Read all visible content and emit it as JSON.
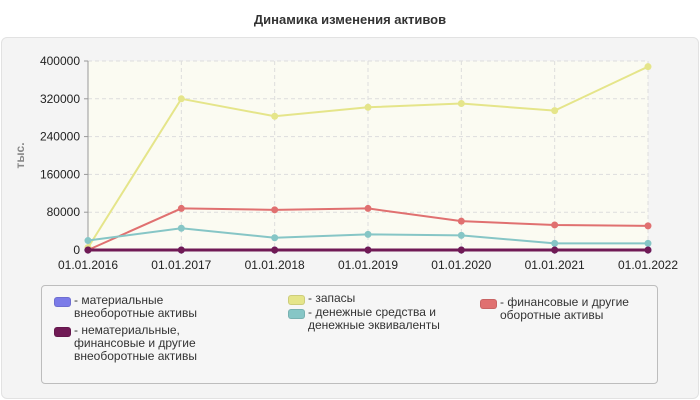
{
  "title": "Динамика изменения активов",
  "chart_data": {
    "type": "line",
    "title": "Динамика изменения активов",
    "ylabel": "тыс.",
    "xlabel": "",
    "categories": [
      "01.01.2016",
      "01.01.2017",
      "01.01.2018",
      "01.01.2019",
      "01.01.2020",
      "01.01.2021",
      "01.01.2022"
    ],
    "ylim": [
      0,
      400000
    ],
    "yticks": [
      "0",
      "80000",
      "160000",
      "240000",
      "320000",
      "400000"
    ],
    "grid": true,
    "legend_placement": "bottom",
    "series": [
      {
        "name": "- материальные внеоборотные активы",
        "color": "#7b7be8",
        "values": [
          0,
          0,
          0,
          0,
          0,
          0,
          0
        ]
      },
      {
        "name": "- нематериальные, финансовые и другие внеоборотные активы",
        "color": "#701a55",
        "values": [
          0,
          0,
          0,
          0,
          0,
          0,
          0
        ]
      },
      {
        "name": "- запасы",
        "color": "#e5e58a",
        "values": [
          5000,
          320000,
          283000,
          302000,
          310000,
          295000,
          388000
        ]
      },
      {
        "name": "- денежные средства и денежные эквиваленты",
        "color": "#86c6c6",
        "values": [
          20000,
          46000,
          26000,
          33000,
          31000,
          14000,
          14000
        ]
      },
      {
        "name": "- финансовые и другие оборотные активы",
        "color": "#e07070",
        "values": [
          0,
          88000,
          85000,
          88000,
          61000,
          53000,
          51000
        ]
      }
    ]
  }
}
